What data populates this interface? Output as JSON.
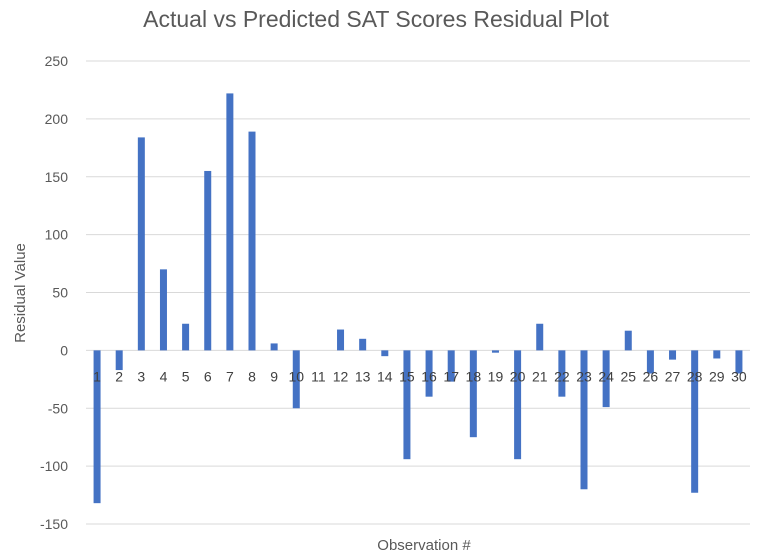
{
  "chart_data": {
    "type": "bar",
    "title": "Actual vs Predicted SAT Scores Residual Plot",
    "xlabel": "Observation #",
    "ylabel": "Residual Value",
    "ylim": [
      -150,
      250
    ],
    "yticks": [
      250,
      200,
      150,
      100,
      50,
      0,
      -50,
      -100,
      -150
    ],
    "grid": true,
    "legend": "none",
    "bar_color": "#4472C4",
    "categories": [
      "1",
      "2",
      "3",
      "4",
      "5",
      "6",
      "7",
      "8",
      "9",
      "10",
      "11",
      "12",
      "13",
      "14",
      "15",
      "16",
      "17",
      "18",
      "19",
      "20",
      "21",
      "22",
      "23",
      "24",
      "25",
      "26",
      "27",
      "28",
      "29",
      "30"
    ],
    "values": [
      -132,
      -17,
      184,
      70,
      23,
      155,
      222,
      189,
      6,
      -50,
      0,
      18,
      10,
      -5,
      -94,
      -40,
      -27,
      -75,
      -2,
      -94,
      23,
      -40,
      -120,
      -49,
      17,
      -20,
      -8,
      -123,
      -7,
      -20
    ]
  }
}
